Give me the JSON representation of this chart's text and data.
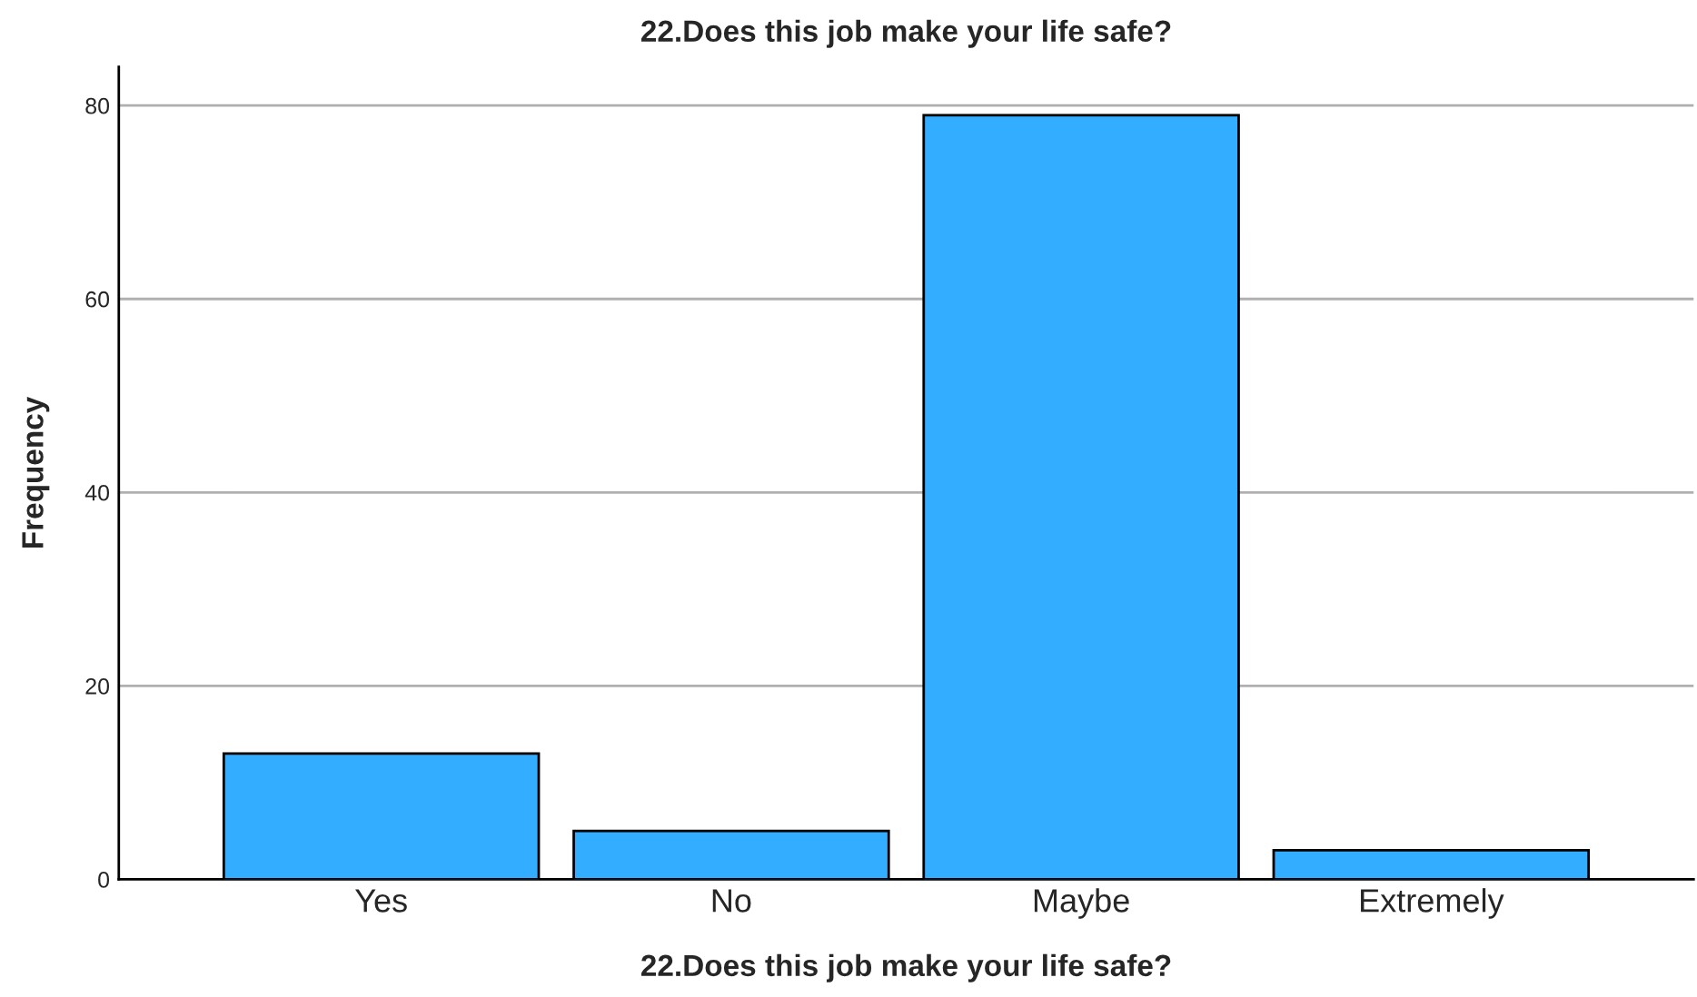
{
  "chart_data": {
    "type": "bar",
    "title": "22.Does this job make your life safe?",
    "xlabel": "22.Does this job make your life safe?",
    "ylabel": "Frequency",
    "categories": [
      "Yes",
      "No",
      "Maybe",
      "Extremely"
    ],
    "values": [
      13,
      5,
      79,
      3
    ],
    "color": "#33adff",
    "ylim": [
      0,
      84
    ],
    "yticks": [
      0,
      20,
      40,
      60,
      80
    ],
    "grid": "y"
  }
}
